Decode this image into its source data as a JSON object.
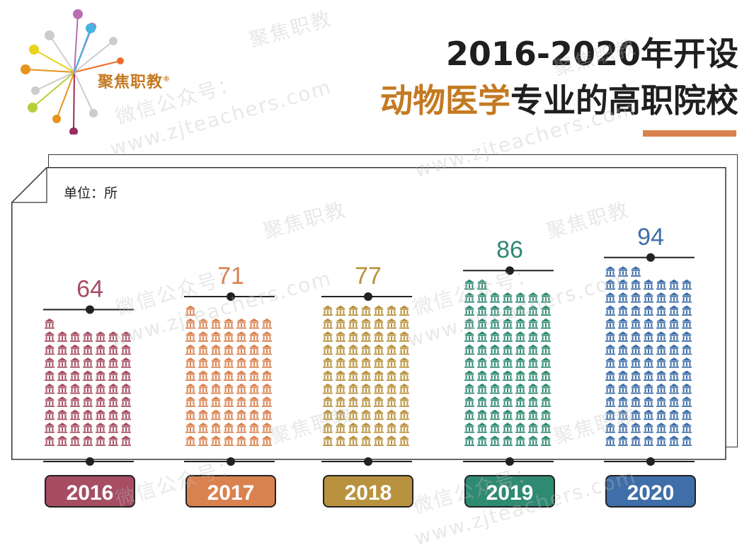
{
  "brand": {
    "name": "聚焦职教",
    "trademark": "®"
  },
  "title": {
    "line1": "2016-2020年开设",
    "line2_highlight": "动物医学",
    "line2_rest": "专业的高职院校"
  },
  "colors": {
    "accent": "#c47a22",
    "underline": "#d9824f",
    "series": [
      "#a64d62",
      "#d9824f",
      "#b8923e",
      "#2f8a72",
      "#3f6ea8"
    ]
  },
  "icon": "institution-building-icon",
  "unit_label": "单位：所",
  "watermarks": [
    "聚焦职教",
    "微信公众号：",
    "www.zjteachers.com"
  ],
  "chart_data": {
    "type": "bar",
    "categories": [
      "2016",
      "2017",
      "2018",
      "2019",
      "2020"
    ],
    "values": [
      64,
      71,
      77,
      86,
      94
    ],
    "title": "2016-2020年开设动物医学专业的高职院校",
    "unit": "单位：所",
    "grid": false,
    "legend": "none"
  }
}
